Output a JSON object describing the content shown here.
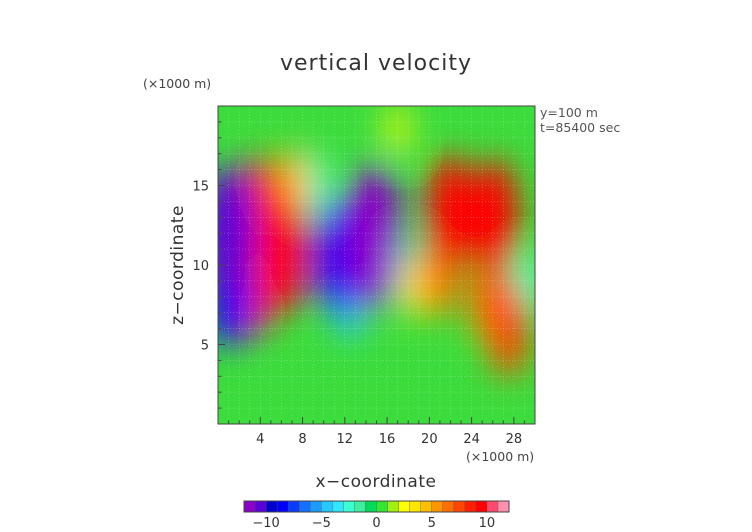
{
  "chart_data": {
    "type": "heatmap",
    "title": "vertical velocity",
    "xlabel": "x−coordinate",
    "ylabel": "z−coordinate",
    "x_unit": "(×1000 m)",
    "y_unit": "(×1000 m)",
    "xlim": [
      0,
      30
    ],
    "ylim": [
      0,
      20
    ],
    "x_ticks": [
      4,
      8,
      12,
      16,
      20,
      24,
      28
    ],
    "x_tick_labels": [
      "4",
      "8",
      "12",
      "16",
      "20",
      "24",
      "28"
    ],
    "y_ticks": [
      5,
      10,
      15
    ],
    "y_tick_labels": [
      "5",
      "10",
      "15"
    ],
    "annotations": [
      "y=100 m",
      "t=85400 sec"
    ],
    "colorbar": {
      "range": [
        -12,
        12
      ],
      "ticks": [
        -10,
        -5,
        0,
        5,
        10
      ],
      "tick_labels": [
        "−10",
        "−5",
        "0",
        "5",
        "10"
      ],
      "colors": [
        "#8a00c8",
        "#5a00d8",
        "#0000cd",
        "#0000ff",
        "#0a3cff",
        "#1470ff",
        "#1e9bff",
        "#28c8ff",
        "#30e6ff",
        "#3cffd2",
        "#3cf0a0",
        "#00dc5a",
        "#32e632",
        "#a0f014",
        "#ffff00",
        "#ffe600",
        "#ffbe00",
        "#ff9600",
        "#ff6e00",
        "#ff4600",
        "#ff1e00",
        "#ff0000",
        "#ff4a6e",
        "#ff90b0"
      ]
    },
    "features": [
      {
        "x": 1.0,
        "z": 12.0,
        "w": -11
      },
      {
        "x": 1.2,
        "z": 8.5,
        "w": -9
      },
      {
        "x": 4.3,
        "z": 13.5,
        "w": 8
      },
      {
        "x": 3.6,
        "z": 9.0,
        "w": 8
      },
      {
        "x": 6.3,
        "z": 10.8,
        "w": 9
      },
      {
        "x": 7.4,
        "z": 15.2,
        "w": 4
      },
      {
        "x": 9.3,
        "z": 15.0,
        "w": -3
      },
      {
        "x": 11.3,
        "z": 10.5,
        "w": -9
      },
      {
        "x": 14.7,
        "z": 11.8,
        "w": -12
      },
      {
        "x": 12.5,
        "z": 7.8,
        "w": -5
      },
      {
        "x": 17.5,
        "z": 10.0,
        "w": -3
      },
      {
        "x": 18.5,
        "z": 8.5,
        "w": 3
      },
      {
        "x": 17.0,
        "z": 18.5,
        "w": 2
      },
      {
        "x": 22.0,
        "z": 13.3,
        "w": 9
      },
      {
        "x": 21.0,
        "z": 9.5,
        "w": 6
      },
      {
        "x": 26.2,
        "z": 13.0,
        "w": 9
      },
      {
        "x": 25.5,
        "z": 8.0,
        "w": 6
      },
      {
        "x": 24.8,
        "z": 6.5,
        "w": 1
      },
      {
        "x": 27.5,
        "z": 6.0,
        "w": 7
      },
      {
        "x": 29.5,
        "z": 9.0,
        "w": -3
      }
    ]
  }
}
